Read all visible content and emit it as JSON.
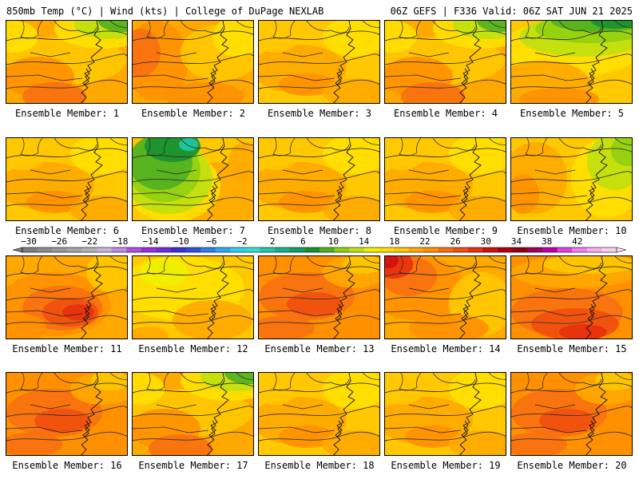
{
  "header": {
    "left": "850mb Temp (°C) | Wind (kts) | College of DuPage NEXLAB",
    "right": "06Z GEFS | F336 Valid: 06Z SAT JUN 21 2025"
  },
  "panels": [
    {
      "label": "Ensemble Member: 1",
      "regime": "warm-green-ne"
    },
    {
      "label": "Ensemble Member: 2",
      "regime": "warm-orange-west"
    },
    {
      "label": "Ensemble Member: 3",
      "regime": "orange-yellow"
    },
    {
      "label": "Ensemble Member: 4",
      "regime": "warm-green-ne"
    },
    {
      "label": "Ensemble Member: 5",
      "regime": "green-north"
    },
    {
      "label": "Ensemble Member: 6",
      "regime": "orange-yellow"
    },
    {
      "label": "Ensemble Member: 7",
      "regime": "green-northwest"
    },
    {
      "label": "Ensemble Member: 8",
      "regime": "orange-yellow"
    },
    {
      "label": "Ensemble Member: 9",
      "regime": "orange-yellow"
    },
    {
      "label": "Ensemble Member: 10",
      "regime": "yellow-green-east"
    },
    {
      "label": "Ensemble Member: 11",
      "regime": "hot-red-center"
    },
    {
      "label": "Ensemble Member: 12",
      "regime": "yellow-mild"
    },
    {
      "label": "Ensemble Member: 13",
      "regime": "hot-orange"
    },
    {
      "label": "Ensemble Member: 14",
      "regime": "hot-red-nw"
    },
    {
      "label": "Ensemble Member: 15",
      "regime": "hot-red-south"
    },
    {
      "label": "Ensemble Member: 16",
      "regime": "hot-orange"
    },
    {
      "label": "Ensemble Member: 17",
      "regime": "warm-green-ne"
    },
    {
      "label": "Ensemble Member: 18",
      "regime": "orange-yellow"
    },
    {
      "label": "Ensemble Member: 19",
      "regime": "orange-yellow"
    },
    {
      "label": "Ensemble Member: 20",
      "regime": "hot-orange"
    }
  ],
  "colorbar": {
    "top_labels": [
      "-30",
      "-26",
      "-22",
      "-18",
      "-14",
      "-10",
      "-6",
      "-2",
      "2",
      "6",
      "10",
      "14",
      "18",
      "22",
      "26",
      "30",
      "34",
      "38",
      "42"
    ],
    "colors": [
      "#7f7f7f",
      "#8c8c8c",
      "#999999",
      "#a6a6a6",
      "#b3b3b3",
      "#c9b6d6",
      "#c08ee0",
      "#b050e0",
      "#9a2fe0",
      "#6f2fd8",
      "#3d2fd0",
      "#2d50d8",
      "#2f7fe8",
      "#30a8f0",
      "#30d0f0",
      "#30e0d0",
      "#20c8a8",
      "#18b088",
      "#10a060",
      "#189030",
      "#50b020",
      "#90d010",
      "#c0e010",
      "#f0f000",
      "#ffe000",
      "#ffc800",
      "#ffa800",
      "#ff9000",
      "#f87010",
      "#f05010",
      "#e83010",
      "#d01010",
      "#b00010",
      "#900010",
      "#a00060",
      "#c000a0",
      "#e040e0",
      "#f080f0",
      "#f8b0f0",
      "#f8d0f0"
    ],
    "legend_key": "850mb temperature (°C)"
  }
}
